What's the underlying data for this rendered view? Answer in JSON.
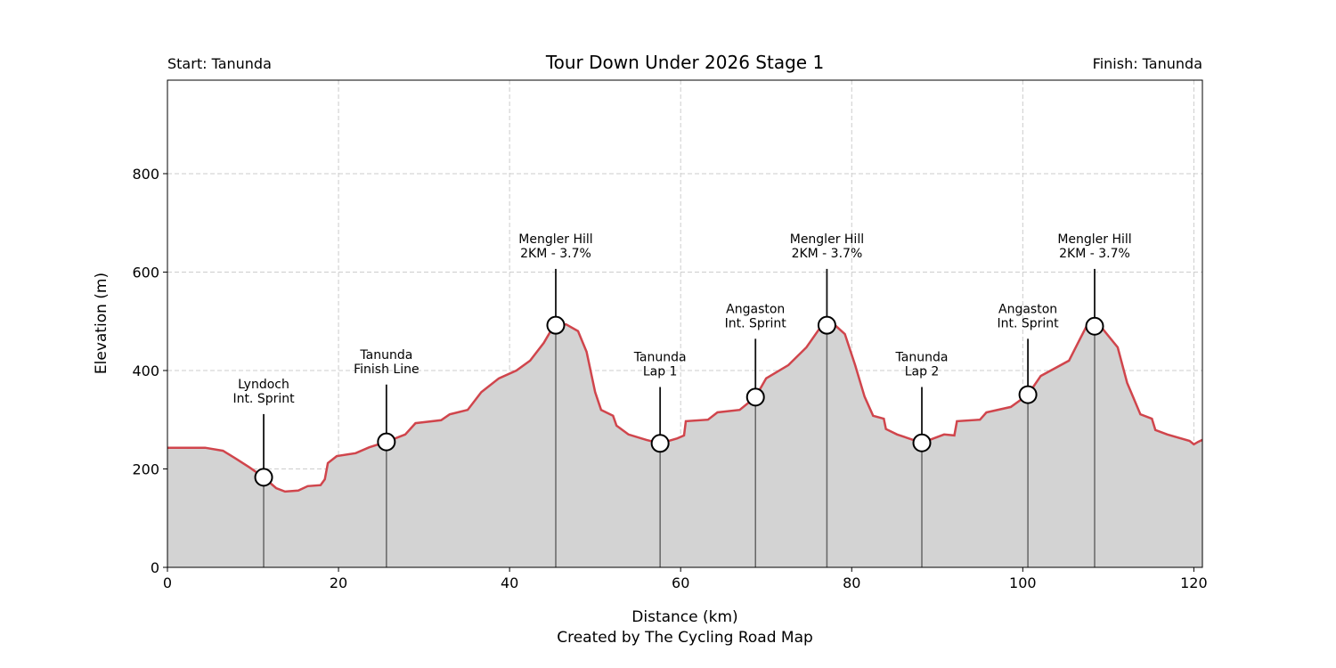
{
  "chart_data": {
    "type": "area",
    "title": "Tour Down Under 2026 Stage 1",
    "start_label": "Start: Tanunda",
    "finish_label": "Finish: Tanunda",
    "xlabel": "Distance (km)",
    "ylabel": "Elevation (m)",
    "credit": "Created by The Cycling Road Map",
    "xlim": [
      0,
      121
    ],
    "ylim": [
      0,
      990
    ],
    "xticks": [
      0,
      20,
      40,
      60,
      80,
      100,
      120
    ],
    "yticks": [
      0,
      200,
      400,
      600,
      800
    ],
    "grid": true,
    "line_color": "#d0454c",
    "fill_color": "#d3d3d3",
    "profile": [
      [
        0,
        243
      ],
      [
        4.4,
        243
      ],
      [
        6.5,
        237
      ],
      [
        8,
        221
      ],
      [
        9.6,
        203
      ],
      [
        11.25,
        183
      ],
      [
        12.7,
        161
      ],
      [
        13.75,
        154
      ],
      [
        15.3,
        156
      ],
      [
        16.4,
        165
      ],
      [
        17.9,
        167
      ],
      [
        18.4,
        179
      ],
      [
        18.75,
        212
      ],
      [
        19.8,
        226
      ],
      [
        22,
        232
      ],
      [
        23.6,
        244
      ],
      [
        25.6,
        255
      ],
      [
        27.8,
        270
      ],
      [
        29,
        293
      ],
      [
        32,
        299
      ],
      [
        33,
        311
      ],
      [
        35.1,
        320
      ],
      [
        36.7,
        356
      ],
      [
        38.75,
        384
      ],
      [
        40.8,
        400
      ],
      [
        42.4,
        420
      ],
      [
        44,
        456
      ],
      [
        45.2,
        492
      ],
      [
        46.6,
        494
      ],
      [
        48,
        480
      ],
      [
        49,
        438
      ],
      [
        50,
        356
      ],
      [
        50.7,
        320
      ],
      [
        52.1,
        308
      ],
      [
        52.5,
        288
      ],
      [
        53.9,
        270
      ],
      [
        56,
        259
      ],
      [
        57.6,
        252
      ],
      [
        59.6,
        262
      ],
      [
        60.4,
        268
      ],
      [
        60.6,
        297
      ],
      [
        63.2,
        300
      ],
      [
        64.3,
        315
      ],
      [
        66.9,
        320
      ],
      [
        68.75,
        346
      ],
      [
        70,
        384
      ],
      [
        72.6,
        411
      ],
      [
        74.7,
        447
      ],
      [
        76.5,
        492
      ],
      [
        77.8,
        496
      ],
      [
        79.2,
        474
      ],
      [
        80.4,
        411
      ],
      [
        81.5,
        347
      ],
      [
        82.5,
        308
      ],
      [
        83.75,
        302
      ],
      [
        84,
        281
      ],
      [
        85.3,
        270
      ],
      [
        88.2,
        253
      ],
      [
        90.8,
        270
      ],
      [
        92,
        268
      ],
      [
        92.3,
        297
      ],
      [
        95,
        300
      ],
      [
        95.75,
        315
      ],
      [
        98.6,
        326
      ],
      [
        100.6,
        351
      ],
      [
        102.1,
        389
      ],
      [
        105.4,
        420
      ],
      [
        107.5,
        492
      ],
      [
        109,
        492
      ],
      [
        111.1,
        447
      ],
      [
        112.2,
        375
      ],
      [
        113.75,
        311
      ],
      [
        115.1,
        302
      ],
      [
        115.5,
        279
      ],
      [
        116.9,
        270
      ],
      [
        119.5,
        257
      ],
      [
        120,
        250
      ],
      [
        120.5,
        255
      ],
      [
        121,
        259
      ]
    ],
    "markers": [
      {
        "km": 11.25,
        "elev": 183,
        "label": [
          "Lyndoch",
          "Int. Sprint"
        ],
        "label_elev": 335
      },
      {
        "km": 25.6,
        "elev": 255,
        "label": [
          "Tanunda",
          "Finish Line"
        ],
        "label_elev": 395
      },
      {
        "km": 45.4,
        "elev": 492,
        "label": [
          "Mengler Hill",
          "2KM - 3.7%"
        ],
        "label_elev": 630
      },
      {
        "km": 57.6,
        "elev": 252,
        "label": [
          "Tanunda",
          "Lap 1"
        ],
        "label_elev": 390
      },
      {
        "km": 68.75,
        "elev": 346,
        "label": [
          "Angaston",
          "Int. Sprint"
        ],
        "label_elev": 488
      },
      {
        "km": 77.1,
        "elev": 492,
        "label": [
          "Mengler Hill",
          "2KM - 3.7%"
        ],
        "label_elev": 630
      },
      {
        "km": 88.2,
        "elev": 253,
        "label": [
          "Tanunda",
          "Lap 2"
        ],
        "label_elev": 390
      },
      {
        "km": 100.6,
        "elev": 351,
        "label": [
          "Angaston",
          "Int. Sprint"
        ],
        "label_elev": 488
      },
      {
        "km": 108.4,
        "elev": 490,
        "label": [
          "Mengler Hill",
          "2KM - 3.7%"
        ],
        "label_elev": 630
      }
    ]
  }
}
